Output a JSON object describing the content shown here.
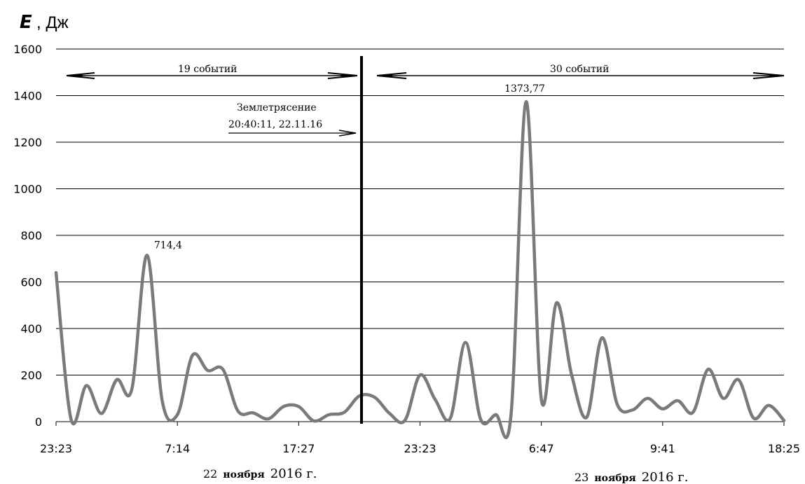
{
  "chart_data": {
    "type": "line",
    "ylabel_symbol": "E",
    "ylabel_unit": ", Дж",
    "ylim": [
      0,
      1600
    ],
    "yticks": [
      0,
      200,
      400,
      600,
      800,
      1000,
      1200,
      1400,
      1600
    ],
    "grid": true,
    "xtick_labels": [
      "23:23",
      "7:14",
      "17:27",
      "23:23",
      "6:47",
      "9:41",
      "18:25"
    ],
    "date_labels": [
      {
        "num": "22",
        "word": "ноября",
        "year": "2016 г."
      },
      {
        "num": "23",
        "word": "ноября",
        "year": "2016 г."
      }
    ],
    "series": [
      {
        "color": "#7a7a7a",
        "points": [
          [
            0,
            640
          ],
          [
            1,
            8
          ],
          [
            2,
            155
          ],
          [
            3,
            35
          ],
          [
            4,
            180
          ],
          [
            5,
            140
          ],
          [
            6,
            714.4
          ],
          [
            7,
            90
          ],
          [
            8,
            30
          ],
          [
            9,
            285
          ],
          [
            10,
            220
          ],
          [
            11,
            225
          ],
          [
            12,
            45
          ],
          [
            13,
            38
          ],
          [
            14,
            12
          ],
          [
            15,
            65
          ],
          [
            16,
            65
          ],
          [
            17,
            3
          ],
          [
            18,
            30
          ],
          [
            19,
            40
          ],
          [
            20,
            110
          ],
          [
            21,
            105
          ],
          [
            22,
            35
          ],
          [
            23,
            5
          ],
          [
            24,
            200
          ],
          [
            25,
            95
          ],
          [
            26,
            15
          ],
          [
            27,
            340
          ],
          [
            28,
            10
          ],
          [
            29,
            30
          ],
          [
            30,
            30
          ],
          [
            31,
            1373.77
          ],
          [
            32,
            95
          ],
          [
            33,
            510
          ],
          [
            34,
            200
          ],
          [
            35,
            20
          ],
          [
            36,
            360
          ],
          [
            37,
            75
          ],
          [
            38,
            50
          ],
          [
            39,
            100
          ],
          [
            40,
            55
          ],
          [
            41,
            90
          ],
          [
            42,
            40
          ],
          [
            43,
            225
          ],
          [
            44,
            100
          ],
          [
            45,
            180
          ],
          [
            46,
            15
          ],
          [
            47,
            70
          ],
          [
            48,
            5
          ]
        ]
      }
    ],
    "event_marker_label": [
      "Землетрясение",
      "20:40:11, 22.11.16"
    ],
    "range_labels": [
      "19 событий",
      "30 событий"
    ],
    "annotations": [
      "714,4",
      "1373,77"
    ]
  }
}
